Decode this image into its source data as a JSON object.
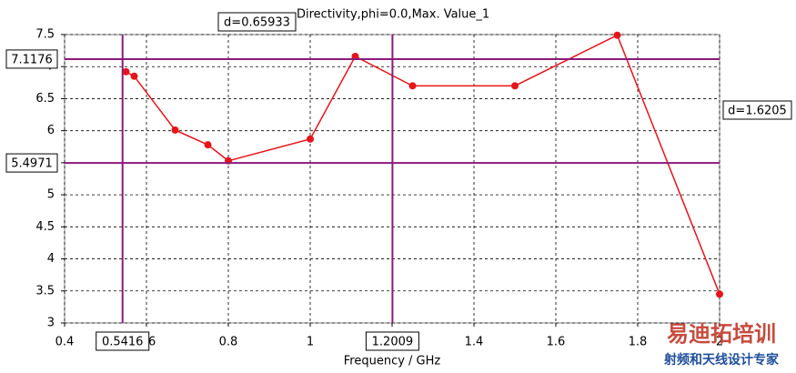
{
  "chart_data": {
    "type": "line",
    "title": "Directivity,phi=0.0,Max. Value_1",
    "x_label": "Frequency / GHz",
    "x": [
      0.55,
      0.57,
      0.67,
      0.75,
      0.8,
      1.0,
      1.11,
      1.25,
      1.5,
      1.75,
      2.0
    ],
    "values": [
      6.92,
      6.85,
      6.01,
      5.78,
      5.53,
      5.87,
      7.16,
      6.7,
      6.7,
      7.49,
      3.45
    ],
    "color": "#e8141b",
    "xlim": [
      0.4,
      2.0
    ],
    "xticks": [
      0.4,
      0.6,
      0.8,
      1,
      1.2,
      1.4,
      1.6,
      1.8,
      2
    ],
    "ylim": [
      3,
      7.5
    ],
    "yticks": [
      3,
      3.5,
      4,
      4.5,
      5,
      5.5,
      6,
      6.5,
      7,
      7.5
    ],
    "grid": true,
    "x_cursors": [
      0.5416,
      1.2009
    ],
    "y_cursors": [
      7.1176,
      5.4971
    ],
    "cursor_color": "#8b1a7a",
    "annotations": [
      "d=0.65933",
      "d=1.6205"
    ]
  },
  "watermark": {
    "title": "易迪拓培训",
    "subtitle": "射频和天线设计专家"
  }
}
